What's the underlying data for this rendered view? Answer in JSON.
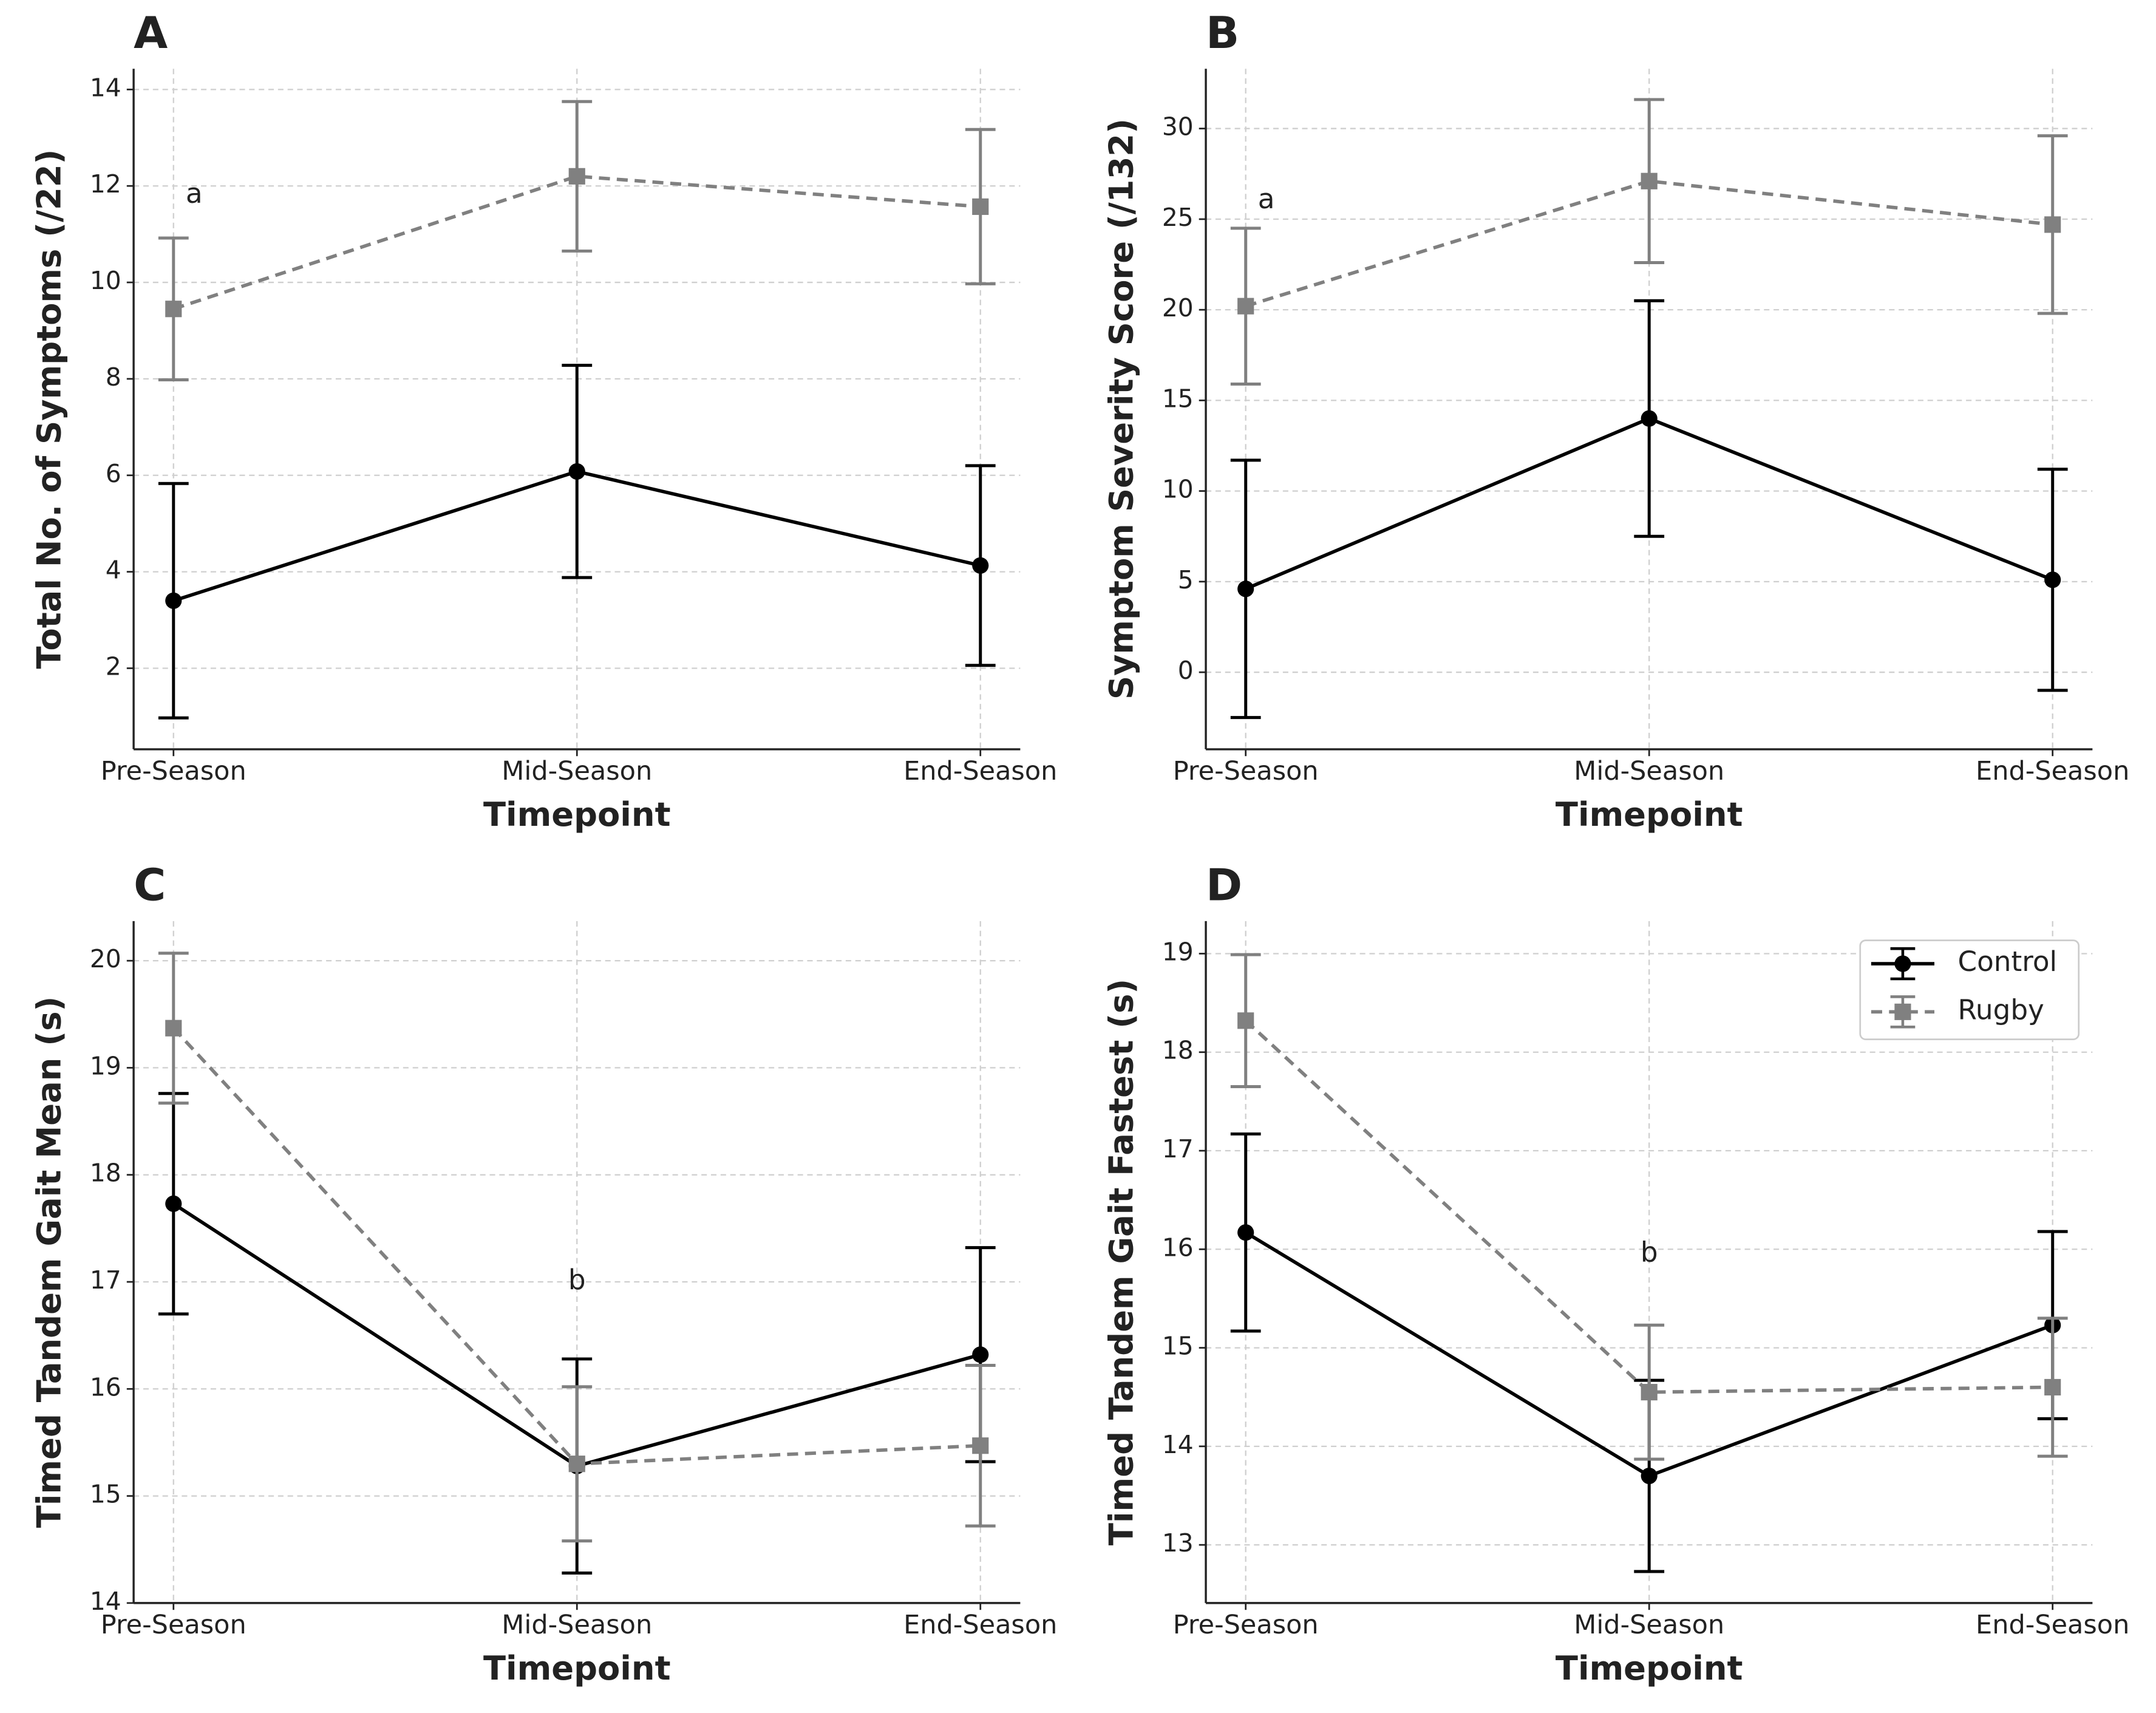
{
  "chart_data": [
    {
      "type": "line",
      "panel_label": "A",
      "ylabel": "Total No. of Symptoms (/22)",
      "xlabel": "Timepoint",
      "categories": [
        "Pre-Season",
        "Mid-Season",
        "End-Season"
      ],
      "series": [
        {
          "name": "Control",
          "color": "#000000",
          "linestyle": "solid",
          "marker": "circle",
          "values": [
            3.4,
            6.08,
            4.13
          ],
          "errors": [
            2.43,
            2.2,
            2.07
          ]
        },
        {
          "name": "Rugby",
          "color": "#808080",
          "linestyle": "dashed",
          "marker": "square",
          "values": [
            9.45,
            12.2,
            11.57
          ],
          "errors": [
            1.47,
            1.55,
            1.6
          ]
        }
      ],
      "ylim": [
        0.32,
        14.43
      ],
      "yticks": [
        2,
        4,
        6,
        8,
        10,
        12,
        14
      ],
      "grid": true,
      "annotations": [
        {
          "text": "a",
          "x": "Pre-Season",
          "y": 11.8
        }
      ]
    },
    {
      "type": "line",
      "panel_label": "B",
      "ylabel": "Symptom Severity Score (/132)",
      "xlabel": "Timepoint",
      "categories": [
        "Pre-Season",
        "Mid-Season",
        "End-Season"
      ],
      "series": [
        {
          "name": "Control",
          "color": "#000000",
          "linestyle": "solid",
          "marker": "circle",
          "values": [
            4.6,
            14.0,
            5.1
          ],
          "errors": [
            7.1,
            6.5,
            6.1
          ]
        },
        {
          "name": "Rugby",
          "color": "#808080",
          "linestyle": "dashed",
          "marker": "square",
          "values": [
            20.2,
            27.1,
            24.7
          ],
          "errors": [
            4.3,
            4.5,
            4.9
          ]
        }
      ],
      "ylim": [
        -4.25,
        33.3
      ],
      "yticks": [
        0,
        5,
        10,
        15,
        20,
        25,
        30
      ],
      "grid": true,
      "annotations": [
        {
          "text": "a",
          "x": "Pre-Season",
          "y": 26
        }
      ]
    },
    {
      "type": "line",
      "panel_label": "C",
      "ylabel": "Timed Tandem Gait Mean (s)",
      "xlabel": "Timepoint",
      "categories": [
        "Pre-Season",
        "Mid-Season",
        "End-Season"
      ],
      "series": [
        {
          "name": "Control",
          "color": "#000000",
          "linestyle": "solid",
          "marker": "circle",
          "values": [
            17.73,
            15.28,
            16.32
          ],
          "errors": [
            1.03,
            1.0,
            1.0
          ]
        },
        {
          "name": "Rugby",
          "color": "#808080",
          "linestyle": "dashed",
          "marker": "square",
          "values": [
            19.37,
            15.3,
            15.47
          ],
          "errors": [
            0.7,
            0.72,
            0.75
          ]
        }
      ],
      "ylim": [
        14,
        20.37
      ],
      "yticks": [
        14,
        15,
        16,
        17,
        18,
        19,
        20
      ],
      "grid": true,
      "annotations": [
        {
          "text": "b",
          "x": "Mid-Season",
          "y": 17.0
        }
      ]
    },
    {
      "type": "line",
      "panel_label": "D",
      "ylabel": "Timed Tandem Gait Fastest (s)",
      "xlabel": "Timepoint",
      "categories": [
        "Pre-Season",
        "Mid-Season",
        "End-Season"
      ],
      "series": [
        {
          "name": "Control",
          "color": "#000000",
          "linestyle": "solid",
          "marker": "circle",
          "values": [
            16.17,
            13.7,
            15.23
          ],
          "errors": [
            1.0,
            0.97,
            0.95
          ]
        },
        {
          "name": "Rugby",
          "color": "#808080",
          "linestyle": "dashed",
          "marker": "square",
          "values": [
            18.32,
            14.55,
            14.6
          ],
          "errors": [
            0.67,
            0.68,
            0.7
          ]
        }
      ],
      "ylim": [
        12.41,
        19.33
      ],
      "yticks": [
        13,
        14,
        15,
        16,
        17,
        18,
        19
      ],
      "grid": true,
      "legend": "upper right",
      "annotations": [
        {
          "text": "b",
          "x": "Mid-Season",
          "y": 15.95
        }
      ]
    }
  ]
}
